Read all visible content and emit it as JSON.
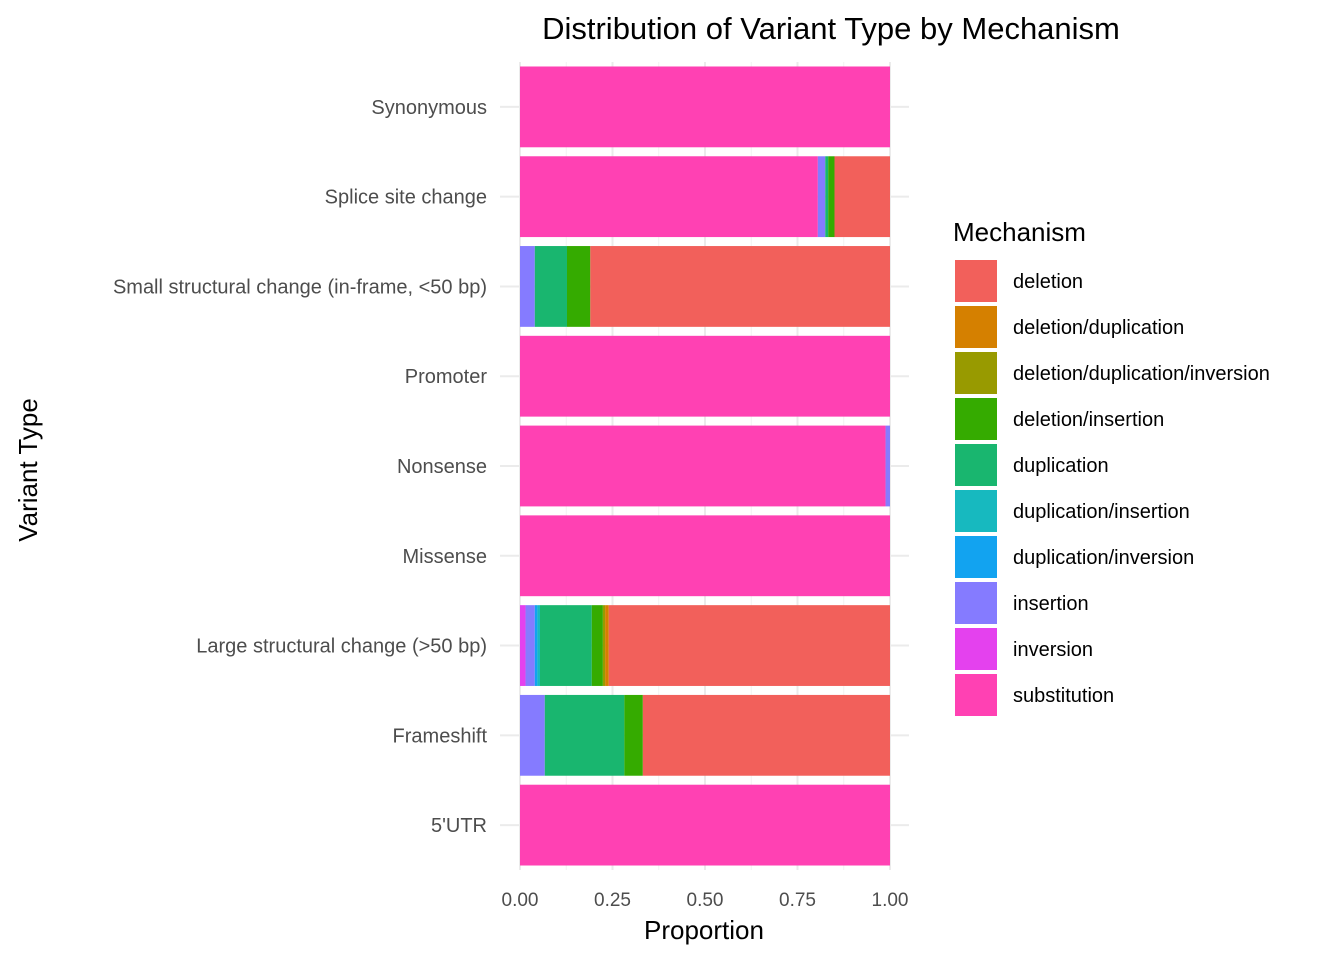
{
  "chart_data": {
    "type": "bar",
    "orientation": "horizontal",
    "stacked": true,
    "title": "Distribution of Variant Type by Mechanism",
    "xlabel": "Proportion",
    "ylabel": "Variant Type",
    "xlim": [
      0,
      1
    ],
    "xticks": [
      "0.00",
      "0.25",
      "0.50",
      "0.75",
      "1.00"
    ],
    "grid": true,
    "legend_title": "Mechanism",
    "legend_position": "right",
    "categories": [
      "Synonymous",
      "Splice site change",
      "Small structural change (in-frame, <50 bp)",
      "Promoter",
      "Nonsense",
      "Missense",
      "Large structural change (>50 bp)",
      "Frameshift",
      "5'UTR"
    ],
    "series": [
      {
        "name": "substitution",
        "color": "#FF41B3",
        "values": [
          1.0,
          0.805,
          0.0,
          1.0,
          0.988,
          1.0,
          0.0,
          0.0,
          1.0
        ]
      },
      {
        "name": "inversion",
        "color": "#E441EE",
        "values": [
          0.0,
          0.0,
          0.0,
          0.0,
          0.0,
          0.0,
          0.015,
          0.0,
          0.0
        ]
      },
      {
        "name": "insertion",
        "color": "#857BFF",
        "values": [
          0.0,
          0.02,
          0.04,
          0.0,
          0.012,
          0.0,
          0.025,
          0.067,
          0.0
        ]
      },
      {
        "name": "duplication/inversion",
        "color": "#12A3F0",
        "values": [
          0.0,
          0.0,
          0.0,
          0.0,
          0.0,
          0.0,
          0.007,
          0.0,
          0.0
        ]
      },
      {
        "name": "duplication/insertion",
        "color": "#17B9BF",
        "values": [
          0.0,
          0.0,
          0.0,
          0.0,
          0.0,
          0.0,
          0.007,
          0.0,
          0.0
        ]
      },
      {
        "name": "duplication",
        "color": "#19B66F",
        "values": [
          0.0,
          0.008,
          0.087,
          0.0,
          0.0,
          0.0,
          0.14,
          0.215,
          0.0
        ]
      },
      {
        "name": "deletion/insertion",
        "color": "#35AB00",
        "values": [
          0.0,
          0.017,
          0.063,
          0.0,
          0.0,
          0.0,
          0.03,
          0.05,
          0.0
        ]
      },
      {
        "name": "deletion/duplication/inversion",
        "color": "#989A00",
        "values": [
          0.0,
          0.0,
          0.0,
          0.0,
          0.0,
          0.0,
          0.006,
          0.0,
          0.0
        ]
      },
      {
        "name": "deletion/duplication",
        "color": "#D58000",
        "values": [
          0.0,
          0.0,
          0.0,
          0.0,
          0.0,
          0.0,
          0.01,
          0.0,
          0.0
        ]
      },
      {
        "name": "deletion",
        "color": "#F2605B",
        "values": [
          0.0,
          0.15,
          0.81,
          0.0,
          0.0,
          0.0,
          0.76,
          0.668,
          0.0
        ]
      }
    ],
    "legend_order": [
      "deletion",
      "deletion/duplication",
      "deletion/duplication/inversion",
      "deletion/insertion",
      "duplication",
      "duplication/insertion",
      "duplication/inversion",
      "insertion",
      "inversion",
      "substitution"
    ]
  }
}
